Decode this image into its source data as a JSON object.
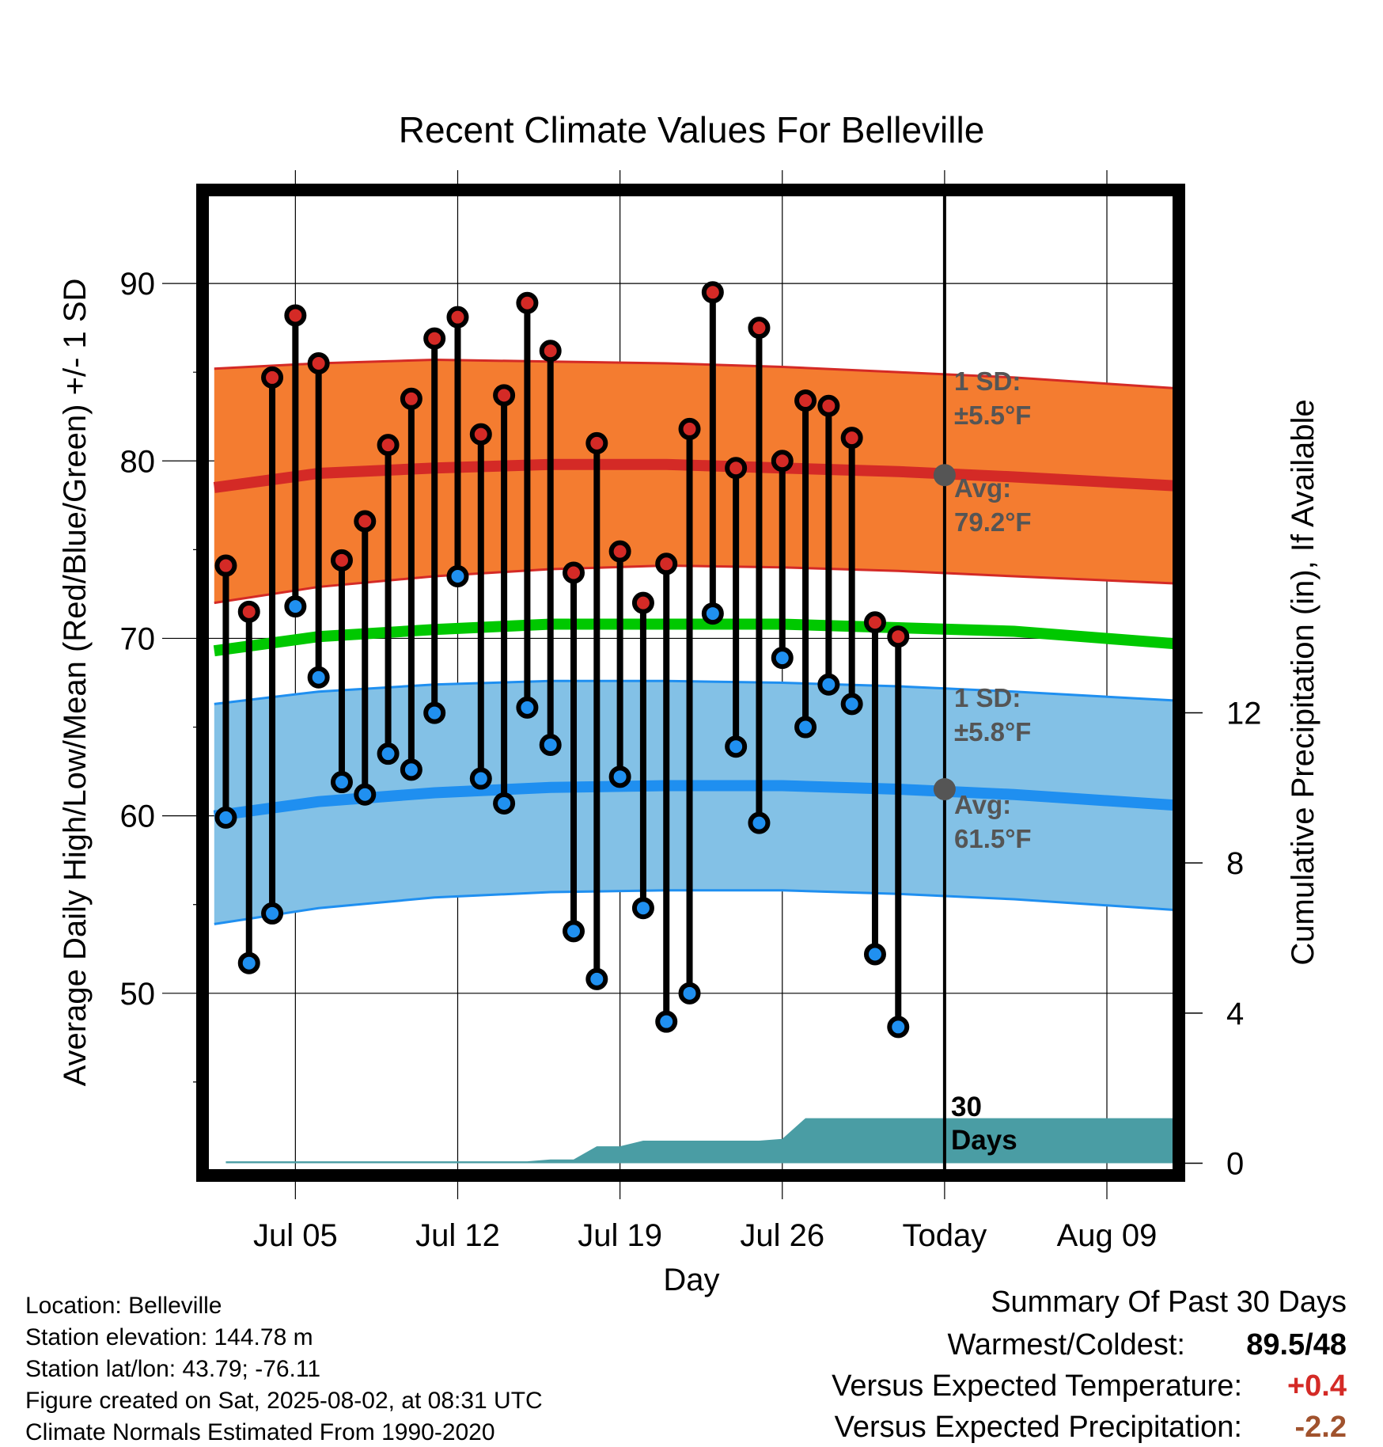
{
  "chart_data": {
    "type": "line",
    "title": "Recent Climate Values For Belleville",
    "xlabel": "Day",
    "ylabel": "Average Daily High/Low/Mean (Red/Blue/Green) +/- 1 SD",
    "y2label": "Cumulative Precipitation (in), If Available",
    "x_ticks": [
      "Jul 05",
      "Jul 12",
      "Jul 19",
      "Jul 26",
      "Today",
      "Aug 09"
    ],
    "x_tick_days": [
      4,
      11,
      18,
      25,
      32,
      39
    ],
    "xlim": [
      0.2,
      41.9
    ],
    "ylim": [
      40,
      95
    ],
    "y_ticks": [
      50,
      60,
      70,
      80,
      90
    ],
    "y2lim": [
      -0.2,
      25.8
    ],
    "y2_ticks": [
      0,
      4,
      8,
      12
    ],
    "grid": true,
    "days": [
      1,
      2,
      3,
      4,
      5,
      6,
      7,
      8,
      9,
      10,
      11,
      12,
      13,
      14,
      15,
      16,
      17,
      18,
      19,
      20,
      21,
      22,
      23,
      24,
      25,
      26,
      27,
      28,
      29,
      30
    ],
    "daily_high": [
      74.1,
      71.5,
      84.7,
      88.2,
      85.5,
      74.4,
      76.6,
      80.9,
      83.5,
      86.9,
      88.1,
      81.5,
      83.7,
      88.9,
      86.2,
      73.7,
      81.0,
      74.9,
      72.0,
      74.2,
      81.8,
      89.5,
      79.6,
      87.5,
      80.0,
      83.4,
      83.1,
      81.3,
      70.9,
      70.1
    ],
    "daily_low": [
      59.9,
      51.7,
      54.5,
      71.8,
      67.8,
      61.9,
      61.2,
      63.5,
      62.6,
      65.8,
      73.5,
      62.1,
      60.7,
      66.1,
      64.0,
      53.5,
      50.8,
      62.2,
      54.8,
      48.4,
      50.0,
      71.4,
      63.9,
      59.6,
      68.9,
      65.0,
      67.4,
      66.3,
      52.2,
      48.1
    ],
    "normal_days": [
      0.5,
      5,
      10,
      15,
      20,
      25,
      30,
      35,
      41.9
    ],
    "normal_high_avg": [
      78.5,
      79.3,
      79.6,
      79.8,
      79.8,
      79.6,
      79.4,
      79.1,
      78.6
    ],
    "normal_high_upper": [
      85.2,
      85.5,
      85.7,
      85.6,
      85.5,
      85.3,
      85.0,
      84.7,
      84.1
    ],
    "normal_high_lower": [
      72.0,
      72.9,
      73.5,
      73.9,
      74.1,
      74.0,
      73.8,
      73.5,
      73.1
    ],
    "normal_mean": [
      69.3,
      70.1,
      70.5,
      70.8,
      70.8,
      70.8,
      70.6,
      70.4,
      69.7
    ],
    "normal_low_avg": [
      60.0,
      60.8,
      61.3,
      61.6,
      61.7,
      61.7,
      61.5,
      61.2,
      60.6
    ],
    "normal_low_upper": [
      66.3,
      67.0,
      67.4,
      67.6,
      67.6,
      67.5,
      67.3,
      67.0,
      66.5
    ],
    "normal_low_lower": [
      53.9,
      54.8,
      55.4,
      55.7,
      55.8,
      55.8,
      55.6,
      55.3,
      54.7
    ],
    "precip_days": [
      1,
      2,
      14,
      15,
      16,
      17,
      18,
      19,
      20,
      21,
      22,
      23,
      24,
      25,
      26,
      27,
      30,
      35,
      41.9
    ],
    "cumulative_precip": [
      0.05,
      0.05,
      0.05,
      0.1,
      0.1,
      0.45,
      0.45,
      0.6,
      0.6,
      0.6,
      0.6,
      0.6,
      0.6,
      0.65,
      1.2,
      1.2,
      1.2,
      1.2,
      1.2
    ],
    "today_day": 32,
    "today_high_avg": 79.2,
    "today_low_avg": 61.5,
    "colors": {
      "high_band": "#f47c30",
      "high_line": "#d42a26",
      "low_band": "#83c1e6",
      "low_line": "#1f8ff0",
      "mean_line": "#00c800",
      "precip": "#4a9da4",
      "high_dot": "#d42a26",
      "low_dot": "#2090f0"
    },
    "annotations": {
      "high_sd_label": "1 SD:",
      "high_sd_value": "±5.5°F",
      "high_avg_label": "Avg:",
      "high_avg_value": "79.2°F",
      "low_sd_label": "1 SD:",
      "low_sd_value": "±5.8°F",
      "low_avg_label": "Avg:",
      "low_avg_value": "61.5°F",
      "precip_label_1": "30",
      "precip_label_2": "Days"
    }
  },
  "footer": {
    "location": "Location: Belleville",
    "elevation": "Station elevation: 144.78 m",
    "latlon": "Station lat/lon: 43.79; -76.11",
    "created": "Figure created on Sat, 2025-08-02, at 08:31 UTC",
    "normals": "Climate Normals Estimated From 1990-2020"
  },
  "summary": {
    "title": "Summary Of Past 30 Days",
    "warm_cold_label": "Warmest/Coldest:",
    "warm_cold_value": "89.5/48",
    "temp_label": "Versus Expected Temperature:",
    "temp_value": "+0.4",
    "temp_color": "#d42a26",
    "precip_label": "Versus Expected Precipitation:",
    "precip_value": "-2.2",
    "precip_color": "#a0522d"
  }
}
